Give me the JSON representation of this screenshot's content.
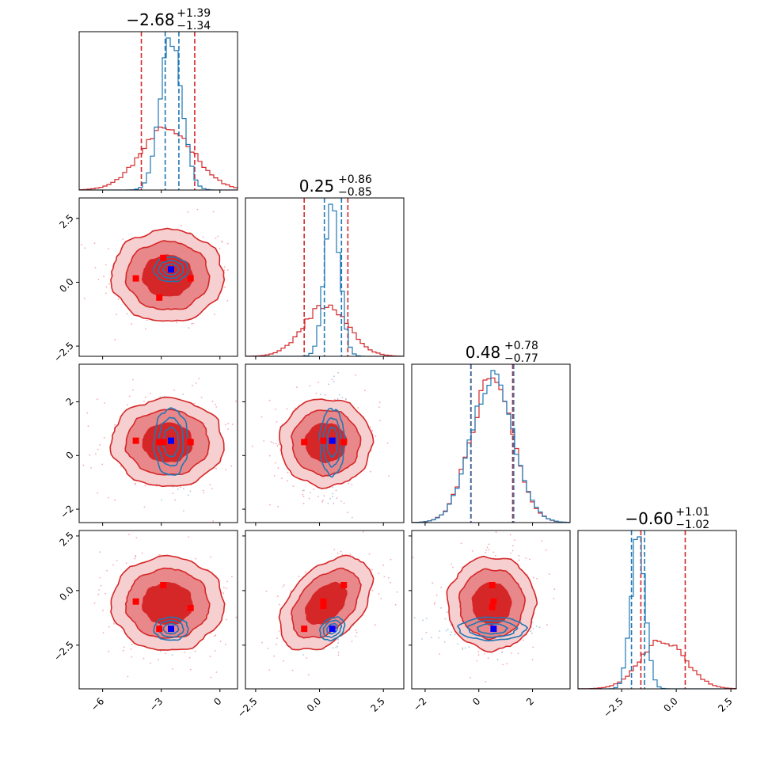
{
  "colors": {
    "red": "#d62728",
    "red_fill_dark": "#d62728",
    "red_fill_mid": "#e8888a",
    "red_fill_light": "#f6cfd0",
    "blue": "#1f77b4",
    "blue_marker": "#0000ff",
    "red_marker": "#ff0000",
    "red_scatter": "#f2a9b4",
    "blue_scatter": "#aac8e4"
  },
  "titles": [
    {
      "main": "−2.68",
      "sup": "+1.39",
      "sub": "−1.34"
    },
    {
      "main": "0.25",
      "sup": "+0.86",
      "sub": "−0.85"
    },
    {
      "main": "0.48",
      "sup": "+0.78",
      "sub": "−0.77"
    },
    {
      "main": "−0.60",
      "sup": "+1.01",
      "sub": "−1.02"
    }
  ],
  "chart_data": {
    "type": "corner",
    "params": 4,
    "ranges": [
      [
        -7.2,
        0.9
      ],
      [
        -2.9,
        3.3
      ],
      [
        -2.5,
        3.4
      ],
      [
        -4.5,
        2.75
      ]
    ],
    "ticks": [
      {
        "values": [
          -6,
          -3,
          0
        ],
        "labels": [
          "−6",
          "−3",
          "0"
        ]
      },
      {
        "values": [
          -2.5,
          0.0,
          2.5
        ],
        "labels": [
          "−2.5",
          "0.0",
          "2.5"
        ]
      },
      {
        "values": [
          -2,
          0,
          2
        ],
        "labels": [
          "−2",
          "0",
          "2"
        ]
      },
      {
        "values": [
          -2.5,
          0.0,
          2.5
        ],
        "labels": [
          "−2.5",
          "0.0",
          "2.5"
        ]
      }
    ],
    "series": [
      {
        "name": "",
        "color_key": "red",
        "mean": [
          -2.68,
          0.25,
          0.48,
          -0.6
        ],
        "sigma": [
          1.37,
          0.86,
          0.78,
          1.02
        ],
        "quantiles": [
          [
            -4.02,
            -1.29
          ],
          [
            -0.6,
            1.11
          ],
          [
            -0.29,
            1.26
          ],
          [
            -1.62,
            0.41
          ]
        ]
      },
      {
        "name": "",
        "color_key": "blue",
        "mean": [
          -2.5,
          0.5,
          0.5,
          -1.75
        ],
        "sigma": [
          0.55,
          0.3,
          0.78,
          0.33
        ],
        "quantiles": [
          [
            -2.8,
            -2.1
          ],
          [
            0.19,
            0.86
          ],
          [
            -0.3,
            1.3
          ],
          [
            -2.05,
            -1.45
          ]
        ]
      }
    ],
    "markers_blue": [
      [
        -2.5,
        0.5,
        0.55,
        -1.75
      ]
    ],
    "markers_red": [
      [
        -4.3,
        0.15,
        0.55,
        -0.5
      ],
      [
        -3.1,
        -0.6,
        0.5,
        -1.75
      ],
      [
        -2.9,
        0.95,
        0.55,
        0.25
      ],
      [
        -1.5,
        0.15,
        0.5,
        -0.8
      ]
    ],
    "pair_markers_red": {
      "1-0": [
        [
          -4.3,
          0.15
        ],
        [
          -2.9,
          0.95
        ],
        [
          -3.1,
          -0.6
        ],
        [
          -1.5,
          0.15
        ]
      ],
      "2-0": [
        [
          -4.3,
          0.55
        ],
        [
          -3.1,
          0.5
        ],
        [
          -2.9,
          0.5
        ],
        [
          -1.5,
          0.5
        ]
      ],
      "2-1": [
        [
          -0.6,
          0.5
        ],
        [
          0.15,
          0.55
        ],
        [
          0.95,
          0.5
        ]
      ],
      "3-0": [
        [
          -4.3,
          -0.5
        ],
        [
          -2.9,
          0.25
        ],
        [
          -3.1,
          -1.75
        ],
        [
          -1.5,
          -0.8
        ]
      ],
      "3-1": [
        [
          -0.6,
          -1.75
        ],
        [
          0.15,
          -0.5
        ],
        [
          0.15,
          -0.7
        ],
        [
          0.95,
          0.25
        ]
      ],
      "3-2": [
        [
          0.5,
          0.25
        ],
        [
          0.55,
          -0.5
        ],
        [
          0.5,
          -0.75
        ]
      ]
    },
    "correlations": {
      "1-0": 0.0,
      "2-0": 0.0,
      "2-1": 0.0,
      "3-0": 0.0,
      "3-1": 0.45,
      "3-2": 0.0
    }
  }
}
